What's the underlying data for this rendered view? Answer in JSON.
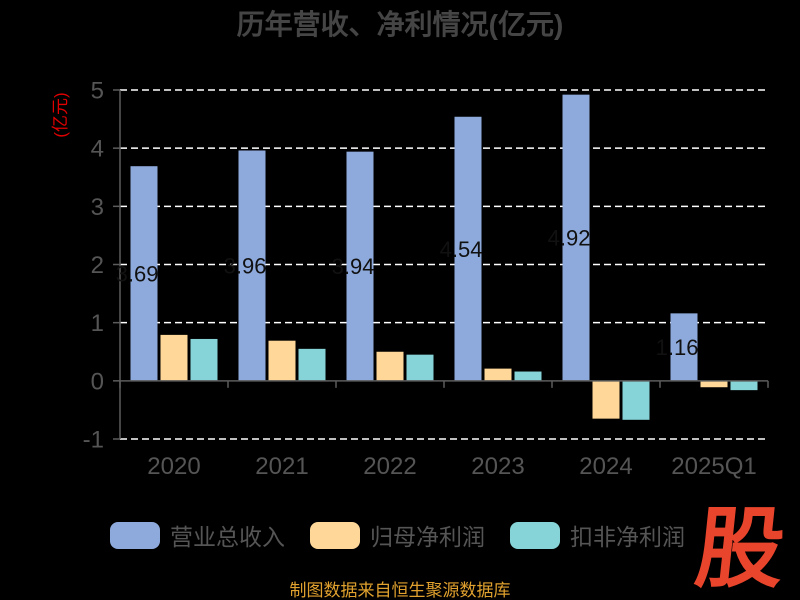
{
  "chart_data": {
    "type": "bar",
    "title": "历年营收、净利情况(亿元)",
    "ylabel": "(亿元)",
    "categories": [
      "2020",
      "2021",
      "2022",
      "2023",
      "2024",
      "2025Q1"
    ],
    "series": [
      {
        "name": "营业总收入",
        "color": "#8EAADC",
        "values": [
          3.69,
          3.96,
          3.94,
          4.54,
          4.92,
          1.16
        ],
        "labels": [
          "3.69",
          "3.96",
          "3.94",
          "4.54",
          "4.92",
          "1.16"
        ]
      },
      {
        "name": "归母净利润",
        "color": "#FFD899",
        "values": [
          0.79,
          0.69,
          0.5,
          0.21,
          -0.65,
          -0.11
        ]
      },
      {
        "name": "扣非净利润",
        "color": "#86D4D7",
        "values": [
          0.72,
          0.55,
          0.45,
          0.16,
          -0.67,
          -0.16
        ]
      }
    ],
    "ylim": [
      -1,
      5
    ],
    "yticks": [
      5,
      4,
      3,
      2,
      1,
      0,
      -1
    ],
    "grid": true,
    "legend_position": "bottom"
  },
  "footer": {
    "source": "制图数据来自恒生聚源数据库"
  },
  "logo": {
    "text": "股"
  }
}
